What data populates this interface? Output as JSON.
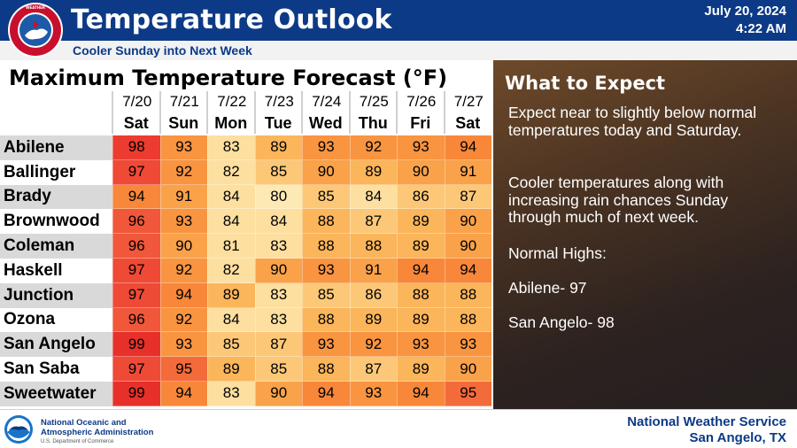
{
  "header": {
    "title": "Temperature Outlook",
    "subtitle": "Cooler Sunday into Next Week",
    "date": "July 20, 2024",
    "time": "4:22 AM",
    "logo_icon": "nws-logo-icon"
  },
  "table": {
    "title": "Maximum Temperature Forecast (°F)",
    "dates": [
      "7/20",
      "7/21",
      "7/22",
      "7/23",
      "7/24",
      "7/25",
      "7/26",
      "7/27"
    ],
    "days": [
      "Sat",
      "Sun",
      "Mon",
      "Tue",
      "Wed",
      "Thu",
      "Fri",
      "Sat"
    ],
    "rows": [
      {
        "city": "Abilene",
        "values": [
          "98",
          "93",
          "83",
          "89",
          "93",
          "92",
          "93",
          "94"
        ]
      },
      {
        "city": "Ballinger",
        "values": [
          "97",
          "92",
          "82",
          "85",
          "90",
          "89",
          "90",
          "91"
        ]
      },
      {
        "city": "Brady",
        "values": [
          "94",
          "91",
          "84",
          "80",
          "85",
          "84",
          "86",
          "87"
        ]
      },
      {
        "city": "Brownwood",
        "values": [
          "96",
          "93",
          "84",
          "84",
          "88",
          "87",
          "89",
          "90"
        ]
      },
      {
        "city": "Coleman",
        "values": [
          "96",
          "90",
          "81",
          "83",
          "88",
          "88",
          "89",
          "90"
        ]
      },
      {
        "city": "Haskell",
        "values": [
          "97",
          "92",
          "82",
          "90",
          "93",
          "91",
          "94",
          "94"
        ]
      },
      {
        "city": "Junction",
        "values": [
          "97",
          "94",
          "89",
          "83",
          "85",
          "86",
          "88",
          "88"
        ]
      },
      {
        "city": "Ozona",
        "values": [
          "96",
          "92",
          "84",
          "83",
          "88",
          "89",
          "89",
          "88"
        ]
      },
      {
        "city": "San Angelo",
        "values": [
          "99",
          "93",
          "85",
          "87",
          "93",
          "92",
          "93",
          "93"
        ]
      },
      {
        "city": "San Saba",
        "values": [
          "97",
          "95",
          "89",
          "85",
          "88",
          "87",
          "89",
          "90"
        ]
      },
      {
        "city": "Sweetwater",
        "values": [
          "99",
          "94",
          "83",
          "90",
          "94",
          "93",
          "94",
          "95"
        ]
      }
    ],
    "colors": {
      "80": "#fde9b4",
      "81": "#fddfa0",
      "82": "#fddfa0",
      "83": "#fddfa0",
      "84": "#fddfa0",
      "85": "#fcc878",
      "86": "#fcc878",
      "87": "#fcc878",
      "88": "#fbb55a",
      "89": "#fbb55a",
      "90": "#f9a24a",
      "91": "#f9a24a",
      "92": "#f99441",
      "93": "#f99441",
      "94": "#f8873a",
      "95": "#f36b3a",
      "96": "#f1573a",
      "97": "#ef4a36",
      "98": "#ec3b30",
      "99": "#e8302a"
    },
    "city_row_colors": [
      "#d9d9d9",
      "#ffffff"
    ]
  },
  "panel": {
    "title": "What to Expect",
    "paragraphs": [
      "Expect near to slightly below normal temperatures today and Saturday.",
      "Cooler temperatures along with increasing rain chances Sunday through much of next week.",
      "Normal Highs:",
      "Abilene- 97",
      "San Angelo- 98"
    ]
  },
  "footer": {
    "agency_line1": "National Oceanic and",
    "agency_line2": "Atmospheric Administration",
    "agency_dept": "U.S. Department of Commerce",
    "office_line1": "National Weather Service",
    "office_line2": "San Angelo, TX",
    "logo_icon": "noaa-logo-icon"
  }
}
